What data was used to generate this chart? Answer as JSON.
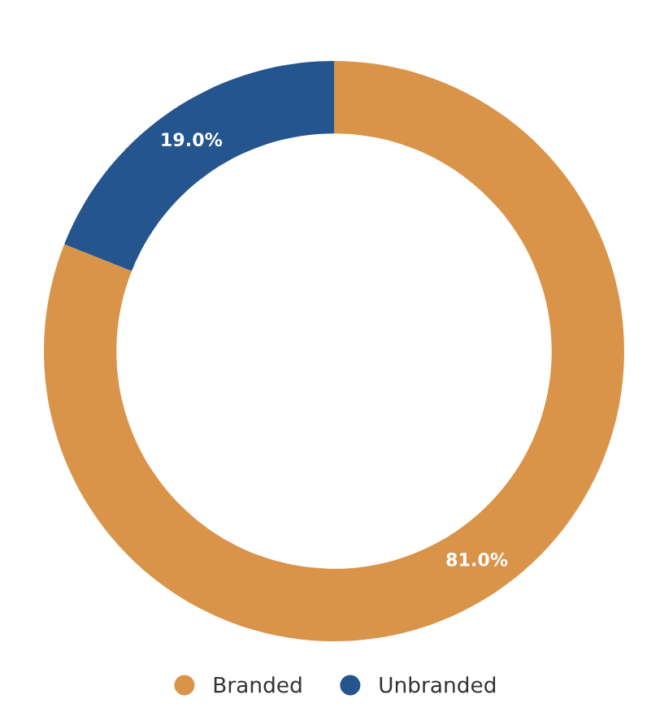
{
  "chart_data": {
    "type": "donut",
    "categories": [
      "Branded",
      "Unbranded"
    ],
    "values": [
      81.0,
      19.0
    ],
    "colors": [
      "#d9944a",
      "#24558e"
    ],
    "value_labels": [
      "81.0%",
      "19.0%"
    ],
    "legend": "bottom"
  }
}
